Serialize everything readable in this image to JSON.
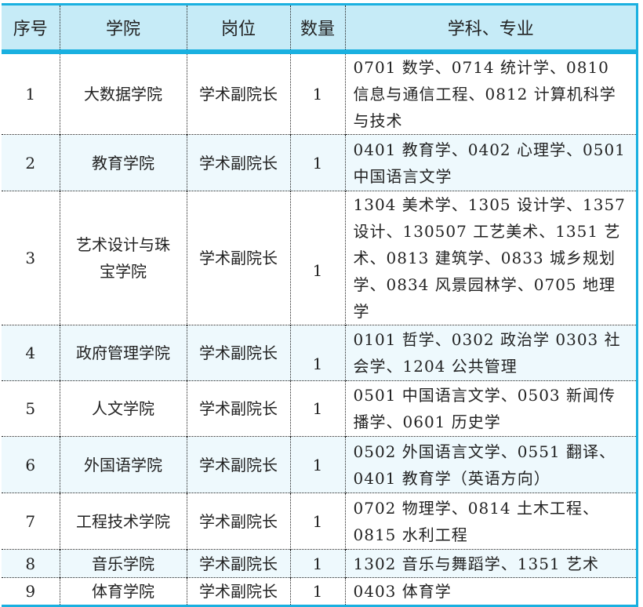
{
  "headers": [
    "序号",
    "学院",
    "岗位",
    "数量",
    "学科、专业"
  ],
  "rows": [
    {
      "no": "1",
      "college": "大数据学院",
      "post": "学术副院长",
      "count": "1",
      "subjects": "0701 数学、0714 统计学、0810 信息与通信工程、0812 计算机科学与技术"
    },
    {
      "no": "2",
      "college": "教育学院",
      "post": "学术副院长",
      "count": "1",
      "subjects": "0401 教育学、0402 心理学、0501 中国语言文学"
    },
    {
      "no": "3",
      "college": "艺术设计与珠宝学院",
      "post": "学术副院长",
      "count": "1",
      "subjects": "1304 美术学、1305 设计学、1357 设计、130507 工艺美术、1351 艺术、0813 建筑学、0833 城乡规划学、0834 风景园林学、0705 地理学"
    },
    {
      "no": "4",
      "college": "政府管理学院",
      "post": "学术副院长",
      "count": "1",
      "subjects": "0101 哲学、0302 政治学 0303 社会学、1204 公共管理"
    },
    {
      "no": "5",
      "college": "人文学院",
      "post": "学术副院长",
      "count": "1",
      "subjects": "0501 中国语言文学、0503 新闻传播学、0601 历史学"
    },
    {
      "no": "6",
      "college": "外国语学院",
      "post": "学术副院长",
      "count": "1",
      "subjects": "0502 外国语言文学、0551 翻译、0401 教育学（英语方向）"
    },
    {
      "no": "7",
      "college": "工程技术学院",
      "post": "学术副院长",
      "count": "1",
      "subjects": "0702 物理学、0814 土木工程、0815 水利工程"
    },
    {
      "no": "8",
      "college": "音乐学院",
      "post": "学术副院长",
      "count": "1",
      "subjects": "1302 音乐与舞蹈学、1351 艺术"
    },
    {
      "no": "9",
      "college": "体育学院",
      "post": "学术副院长",
      "count": "1",
      "subjects": "0403 体育学"
    }
  ]
}
